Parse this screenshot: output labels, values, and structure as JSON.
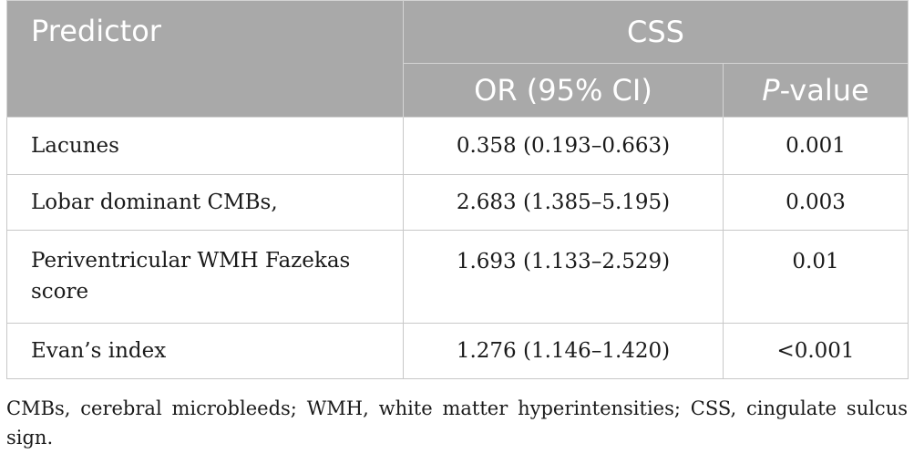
{
  "table": {
    "header": {
      "predictor": "Predictor",
      "group": "CSS",
      "or_col": "OR (95% CI)",
      "p_col_italic": "P",
      "p_col_rest": "-value"
    },
    "rows": [
      {
        "predictor": "Lacunes",
        "or": "0.358 (0.193–0.663)",
        "p": "0.001"
      },
      {
        "predictor": "Lobar dominant CMBs,",
        "or": "2.683 (1.385–5.195)",
        "p": "0.003"
      },
      {
        "predictor": "Periventricular WMH Fazekas score",
        "or": "1.693 (1.133–2.529)",
        "p": "0.01"
      },
      {
        "predictor": "Evan’s index",
        "or": "1.276 (1.146–1.420)",
        "p": "<0.001"
      }
    ]
  },
  "footnote": "CMBs, cerebral microbleeds; WMH, white matter hyperintensities; CSS, cingulate sulcus sign."
}
